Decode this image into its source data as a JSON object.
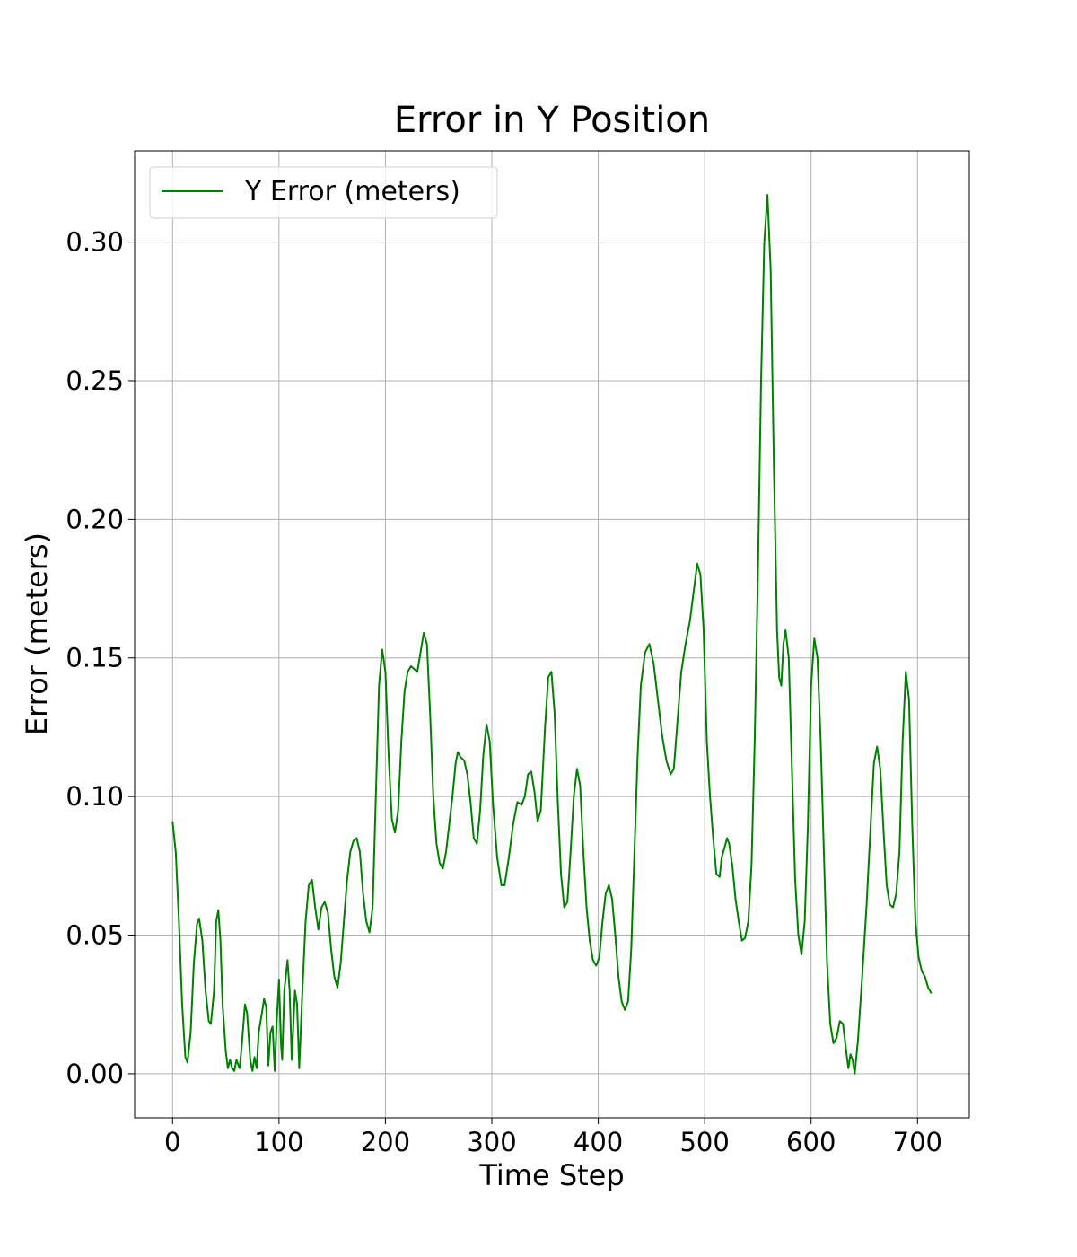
{
  "chart_data": {
    "type": "line",
    "title": "Error in Y Position",
    "xlabel": "Time Step",
    "ylabel": "Error (meters)",
    "x": [
      0,
      3,
      6,
      9,
      12,
      14,
      17,
      20,
      23,
      25,
      28,
      31,
      34,
      36,
      39,
      41,
      43,
      45,
      47,
      50,
      52,
      54,
      56,
      58,
      60,
      63,
      65,
      68,
      70,
      73,
      75,
      77,
      79,
      81,
      84,
      86,
      88,
      90,
      92,
      94,
      96,
      98,
      100,
      102,
      103,
      105,
      108,
      110,
      112,
      115,
      117,
      119,
      122,
      125,
      128,
      131,
      134,
      137,
      140,
      143,
      146,
      149,
      152,
      155,
      158,
      161,
      164,
      167,
      170,
      173,
      176,
      179,
      182,
      185,
      188,
      191,
      194,
      197,
      200,
      203,
      206,
      209,
      212,
      215,
      218,
      221,
      224,
      227,
      230,
      233,
      236,
      239,
      242,
      245,
      248,
      251,
      254,
      257,
      260,
      263,
      266,
      268,
      271,
      274,
      277,
      280,
      283,
      286,
      289,
      292,
      295,
      298,
      301,
      305,
      309,
      312,
      316,
      320,
      324,
      328,
      331,
      334,
      337,
      340,
      343,
      346,
      350,
      353,
      356,
      359,
      362,
      365,
      368,
      371,
      374,
      377,
      380,
      383,
      386,
      389,
      392,
      395,
      398,
      401,
      404,
      407,
      410,
      413,
      416,
      419,
      422,
      425,
      428,
      431,
      434,
      437,
      440,
      444,
      448,
      452,
      456,
      460,
      464,
      468,
      471,
      474,
      478,
      482,
      486,
      490,
      493,
      496,
      499,
      502,
      505,
      508,
      511,
      514,
      516,
      519,
      521,
      523,
      526,
      529,
      532,
      535,
      538,
      541,
      544,
      547,
      550,
      553,
      556,
      559,
      562,
      565,
      568,
      570,
      572,
      574,
      576,
      579,
      582,
      585,
      588,
      591,
      594,
      597,
      600,
      603,
      606,
      609,
      612,
      615,
      618,
      621,
      624,
      627,
      630,
      633,
      635,
      637,
      639,
      641,
      644,
      648,
      652,
      656,
      659,
      662,
      665,
      668,
      671,
      674,
      677,
      680,
      683,
      686,
      689,
      692,
      695,
      698,
      701,
      704,
      707,
      710,
      713
    ],
    "series": [
      {
        "name": "Y Error (meters)",
        "color": "#008000",
        "values": [
          0.091,
          0.08,
          0.055,
          0.025,
          0.006,
          0.004,
          0.015,
          0.04,
          0.054,
          0.056,
          0.048,
          0.03,
          0.019,
          0.018,
          0.03,
          0.055,
          0.059,
          0.048,
          0.025,
          0.008,
          0.002,
          0.005,
          0.002,
          0.001,
          0.005,
          0.002,
          0.01,
          0.025,
          0.022,
          0.005,
          0.001,
          0.006,
          0.002,
          0.015,
          0.022,
          0.027,
          0.024,
          0.003,
          0.015,
          0.017,
          0.001,
          0.02,
          0.034,
          0.01,
          0.005,
          0.03,
          0.041,
          0.03,
          0.005,
          0.03,
          0.025,
          0.002,
          0.03,
          0.055,
          0.068,
          0.07,
          0.06,
          0.052,
          0.06,
          0.062,
          0.058,
          0.045,
          0.035,
          0.031,
          0.04,
          0.055,
          0.07,
          0.08,
          0.084,
          0.085,
          0.08,
          0.065,
          0.055,
          0.051,
          0.06,
          0.1,
          0.14,
          0.153,
          0.145,
          0.115,
          0.092,
          0.087,
          0.095,
          0.12,
          0.138,
          0.145,
          0.147,
          0.146,
          0.145,
          0.152,
          0.159,
          0.155,
          0.13,
          0.1,
          0.083,
          0.076,
          0.074,
          0.08,
          0.09,
          0.1,
          0.112,
          0.116,
          0.114,
          0.113,
          0.108,
          0.098,
          0.085,
          0.083,
          0.095,
          0.115,
          0.126,
          0.12,
          0.098,
          0.078,
          0.068,
          0.068,
          0.078,
          0.09,
          0.098,
          0.097,
          0.1,
          0.108,
          0.109,
          0.102,
          0.091,
          0.095,
          0.125,
          0.143,
          0.145,
          0.13,
          0.098,
          0.072,
          0.06,
          0.062,
          0.08,
          0.1,
          0.11,
          0.104,
          0.08,
          0.06,
          0.048,
          0.041,
          0.039,
          0.042,
          0.055,
          0.065,
          0.068,
          0.063,
          0.05,
          0.035,
          0.026,
          0.023,
          0.026,
          0.045,
          0.08,
          0.115,
          0.14,
          0.152,
          0.155,
          0.148,
          0.135,
          0.122,
          0.113,
          0.108,
          0.11,
          0.125,
          0.145,
          0.155,
          0.163,
          0.175,
          0.184,
          0.18,
          0.16,
          0.12,
          0.1,
          0.085,
          0.072,
          0.071,
          0.078,
          0.082,
          0.085,
          0.083,
          0.075,
          0.063,
          0.055,
          0.048,
          0.049,
          0.055,
          0.075,
          0.12,
          0.18,
          0.25,
          0.3,
          0.317,
          0.29,
          0.22,
          0.16,
          0.143,
          0.14,
          0.155,
          0.16,
          0.15,
          0.11,
          0.07,
          0.05,
          0.043,
          0.055,
          0.09,
          0.14,
          0.157,
          0.15,
          0.12,
          0.08,
          0.04,
          0.018,
          0.011,
          0.013,
          0.019,
          0.018,
          0.008,
          0.002,
          0.007,
          0.005,
          0.0,
          0.012,
          0.035,
          0.06,
          0.09,
          0.112,
          0.118,
          0.11,
          0.088,
          0.068,
          0.061,
          0.06,
          0.065,
          0.08,
          0.12,
          0.145,
          0.135,
          0.09,
          0.055,
          0.042,
          0.037,
          0.035,
          0.031,
          0.029
        ]
      }
    ],
    "xlim": [
      -35.65,
      748.65
    ],
    "ylim": [
      -0.0159,
      0.3329
    ],
    "xticks": [
      0,
      100,
      200,
      300,
      400,
      500,
      600,
      700
    ],
    "yticks": [
      {
        "value": 0,
        "label": "0.00"
      },
      0.05,
      {
        "value": 0.1,
        "label": "0.10"
      },
      0.15,
      {
        "value": 0.2,
        "label": "0.20"
      },
      0.25,
      {
        "value": 0.3,
        "label": "0.30"
      }
    ],
    "grid": true,
    "legend": "upper left"
  }
}
